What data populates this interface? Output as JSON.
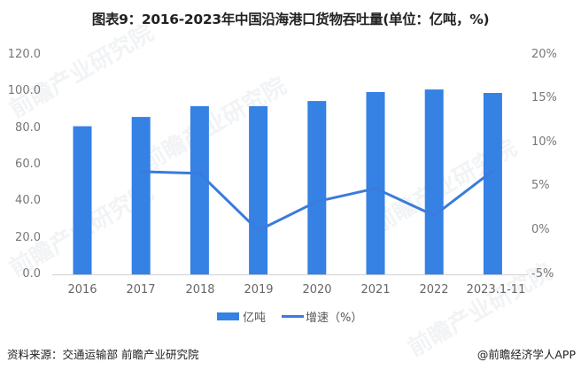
{
  "title": "图表9：2016-2023年中国沿海港口货物吞吐量(单位：亿吨，%)",
  "left_axis": {
    "ticks": [
      "120.0",
      "100.0",
      "80.0",
      "60.0",
      "40.0",
      "20.0",
      "0.0"
    ]
  },
  "right_axis": {
    "ticks": [
      "20%",
      "15%",
      "10%",
      "5%",
      "0%",
      "-5%"
    ]
  },
  "x_axis": {
    "ticks": [
      "2016",
      "2017",
      "2018",
      "2019",
      "2020",
      "2021",
      "2022",
      "2023.1-11"
    ]
  },
  "legend": {
    "bar_label": "亿吨",
    "line_label": "增速（%）"
  },
  "footer": {
    "source": "资料来源：交通运输部 前瞻产业研究院",
    "credit": "@前瞻经济学人APP"
  },
  "watermark": "前瞻产业研究院",
  "colors": {
    "bar": "#3581E4",
    "line": "#3A7BDB",
    "axis": "#D0D0D0"
  },
  "chart_data": {
    "type": "bar",
    "title": "图表9：2016-2023年中国沿海港口货物吞吐量(单位：亿吨，%)",
    "categories": [
      "2016",
      "2017",
      "2018",
      "2019",
      "2020",
      "2021",
      "2022",
      "2023.1-11"
    ],
    "series": [
      {
        "name": "亿吨",
        "type": "bar",
        "axis": "left",
        "values": [
          81.0,
          86.1,
          92.0,
          92.0,
          94.8,
          99.7,
          101.1,
          99.2
        ]
      },
      {
        "name": "增速（%）",
        "type": "line",
        "axis": "right",
        "values": [
          null,
          6.7,
          6.5,
          0.0,
          3.3,
          4.8,
          1.7,
          6.8
        ]
      }
    ],
    "xlabel": "",
    "ylabel": "亿吨",
    "y2label": "%",
    "ylim": [
      0,
      120
    ],
    "y2lim": [
      -5,
      20
    ],
    "grid": false,
    "legend_position": "bottom"
  }
}
